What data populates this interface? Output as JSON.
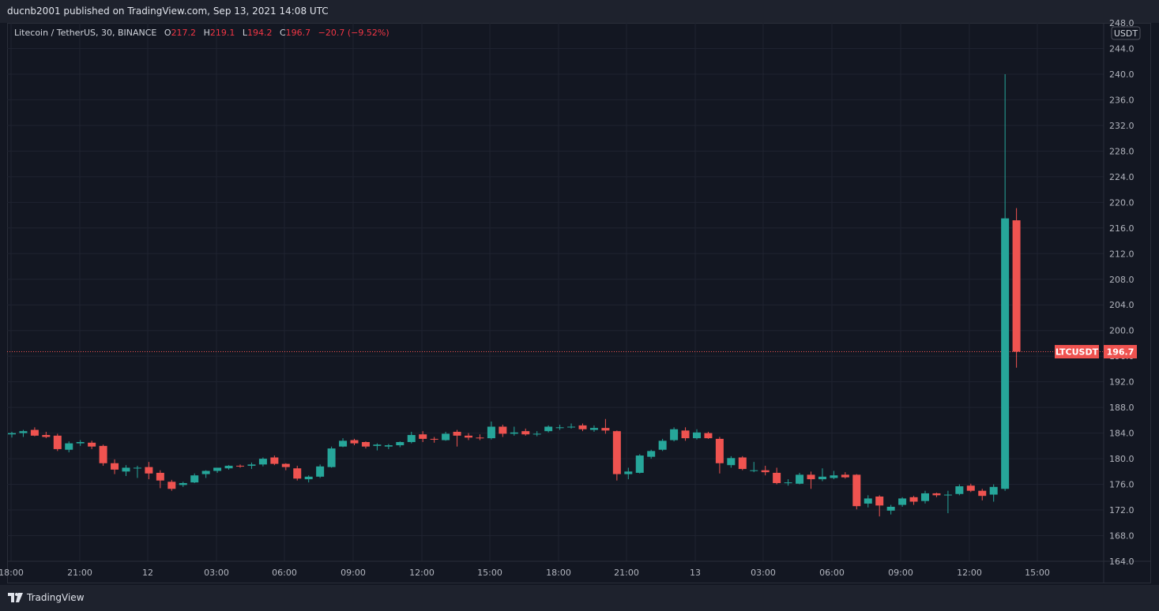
{
  "header": {
    "publish_text": "ducnb2001 published on TradingView.com, Sep 13, 2021 14:08 UTC"
  },
  "legend": {
    "symbol": "Litecoin / TetherUS, 30, BINANCE",
    "o_label": "O",
    "o_value": "217.2",
    "h_label": "H",
    "h_value": "219.1",
    "l_label": "L",
    "l_value": "194.2",
    "c_label": "C",
    "c_value": "196.7",
    "change": "−20.7 (−9.52%)"
  },
  "price_scale": {
    "currency": "USDT",
    "last_label": "LTCUSDT",
    "last_value": "196.7"
  },
  "footer": {
    "brand": "TradingView"
  },
  "colors": {
    "up": "#26a69a",
    "down": "#ef5350",
    "background": "#131722",
    "grid": "#1f2330",
    "text": "#d1d4dc"
  },
  "chart_data": {
    "type": "candlestick",
    "symbol": "LTCUSDT",
    "interval": "30",
    "ylim": [
      164,
      248
    ],
    "yticks": [
      "248.0",
      "244.0",
      "240.0",
      "236.0",
      "232.0",
      "228.0",
      "224.0",
      "220.0",
      "216.0",
      "212.0",
      "208.0",
      "204.0",
      "200.0",
      "196.0",
      "192.0",
      "188.0",
      "184.0",
      "180.0",
      "176.0",
      "172.0",
      "168.0",
      "164.0"
    ],
    "xticks": [
      "18:00",
      "21:00",
      "12",
      "03:00",
      "06:00",
      "09:00",
      "12:00",
      "15:00",
      "18:00",
      "21:00",
      "13",
      "03:00",
      "06:00",
      "09:00",
      "12:00",
      "15:00"
    ],
    "last_price": 196.7,
    "candles": [
      [
        183.8,
        184.2,
        183.3,
        184.0
      ],
      [
        184.0,
        184.5,
        183.4,
        184.3
      ],
      [
        184.5,
        184.9,
        183.5,
        183.6
      ],
      [
        183.7,
        184.2,
        183.2,
        183.4
      ],
      [
        183.6,
        183.9,
        181.2,
        181.5
      ],
      [
        181.4,
        182.7,
        181.0,
        182.4
      ],
      [
        182.4,
        182.9,
        182.0,
        182.6
      ],
      [
        182.5,
        182.8,
        181.5,
        181.9
      ],
      [
        182.0,
        182.2,
        178.9,
        179.3
      ],
      [
        179.3,
        179.9,
        177.6,
        178.3
      ],
      [
        178.0,
        179.0,
        177.3,
        178.6
      ],
      [
        178.6,
        178.9,
        177.0,
        178.6
      ],
      [
        178.7,
        179.5,
        176.8,
        177.7
      ],
      [
        177.8,
        178.2,
        175.4,
        176.6
      ],
      [
        176.4,
        176.7,
        175.0,
        175.3
      ],
      [
        175.9,
        176.4,
        175.6,
        176.2
      ],
      [
        176.3,
        177.7,
        176.2,
        177.4
      ],
      [
        177.6,
        178.2,
        177.0,
        178.1
      ],
      [
        178.1,
        178.6,
        177.8,
        178.6
      ],
      [
        178.5,
        179.0,
        178.3,
        178.9
      ],
      [
        178.9,
        179.1,
        178.6,
        178.8
      ],
      [
        178.9,
        179.4,
        178.4,
        179.1
      ],
      [
        179.1,
        180.2,
        178.8,
        180.0
      ],
      [
        180.2,
        180.5,
        179.0,
        179.2
      ],
      [
        179.2,
        179.3,
        178.2,
        178.7
      ],
      [
        178.5,
        178.9,
        176.6,
        176.9
      ],
      [
        176.8,
        177.4,
        176.3,
        177.2
      ],
      [
        177.2,
        179.1,
        177.0,
        178.8
      ],
      [
        178.7,
        181.9,
        178.6,
        181.6
      ],
      [
        181.9,
        183.2,
        181.8,
        182.8
      ],
      [
        182.9,
        183.1,
        182.1,
        182.4
      ],
      [
        182.6,
        182.7,
        181.6,
        181.9
      ],
      [
        182.0,
        182.4,
        181.3,
        182.2
      ],
      [
        181.9,
        182.3,
        181.5,
        182.1
      ],
      [
        182.1,
        182.7,
        181.8,
        182.6
      ],
      [
        182.6,
        184.2,
        182.4,
        183.7
      ],
      [
        183.8,
        184.3,
        182.6,
        183.1
      ],
      [
        183.1,
        183.4,
        182.5,
        183.0
      ],
      [
        182.9,
        184.2,
        182.8,
        183.9
      ],
      [
        184.2,
        184.5,
        181.9,
        183.6
      ],
      [
        183.6,
        184.0,
        182.9,
        183.3
      ],
      [
        183.3,
        183.8,
        182.9,
        183.2
      ],
      [
        183.2,
        185.8,
        183.0,
        185.0
      ],
      [
        185.0,
        185.3,
        183.4,
        183.9
      ],
      [
        183.9,
        185.0,
        183.6,
        184.1
      ],
      [
        184.3,
        184.7,
        183.6,
        183.8
      ],
      [
        183.8,
        184.3,
        183.5,
        183.9
      ],
      [
        184.3,
        185.2,
        184.1,
        185.0
      ],
      [
        184.9,
        185.3,
        184.5,
        184.9
      ],
      [
        184.9,
        185.5,
        184.7,
        185.0
      ],
      [
        185.2,
        185.5,
        184.3,
        184.6
      ],
      [
        184.5,
        185.2,
        184.2,
        184.8
      ],
      [
        184.8,
        186.2,
        183.9,
        184.4
      ],
      [
        184.3,
        184.4,
        176.6,
        177.6
      ],
      [
        177.6,
        178.6,
        176.8,
        178.0
      ],
      [
        177.8,
        180.7,
        177.7,
        180.5
      ],
      [
        180.3,
        181.4,
        180.0,
        181.2
      ],
      [
        181.4,
        183.1,
        181.2,
        182.8
      ],
      [
        182.9,
        184.9,
        182.7,
        184.6
      ],
      [
        184.4,
        184.9,
        182.8,
        183.2
      ],
      [
        183.2,
        184.6,
        183.0,
        184.1
      ],
      [
        184.0,
        184.2,
        183.1,
        183.2
      ],
      [
        183.1,
        183.4,
        177.7,
        179.3
      ],
      [
        179.0,
        180.4,
        178.6,
        180.1
      ],
      [
        180.2,
        180.4,
        178.2,
        178.4
      ],
      [
        178.2,
        179.5,
        177.9,
        178.2
      ],
      [
        178.2,
        178.9,
        177.4,
        177.9
      ],
      [
        177.8,
        178.6,
        176.0,
        176.2
      ],
      [
        176.2,
        176.8,
        175.8,
        176.3
      ],
      [
        176.1,
        177.8,
        176.0,
        177.5
      ],
      [
        177.5,
        178.0,
        175.3,
        176.8
      ],
      [
        176.8,
        178.5,
        176.5,
        177.2
      ],
      [
        177.0,
        178.1,
        176.8,
        177.4
      ],
      [
        177.5,
        177.9,
        176.9,
        177.1
      ],
      [
        177.5,
        177.6,
        172.1,
        172.6
      ],
      [
        173.0,
        174.3,
        172.4,
        173.8
      ],
      [
        174.1,
        174.3,
        171.0,
        172.7
      ],
      [
        171.9,
        172.8,
        171.3,
        172.5
      ],
      [
        172.8,
        174.0,
        172.5,
        173.8
      ],
      [
        174.0,
        174.2,
        172.8,
        173.3
      ],
      [
        173.4,
        175.0,
        173.0,
        174.6
      ],
      [
        174.6,
        174.7,
        174.0,
        174.3
      ],
      [
        174.4,
        175.0,
        171.5,
        174.4
      ],
      [
        174.5,
        176.0,
        174.3,
        175.7
      ],
      [
        175.8,
        176.1,
        174.8,
        175.0
      ],
      [
        175.0,
        175.3,
        173.5,
        174.2
      ],
      [
        174.4,
        176.0,
        173.3,
        175.6
      ],
      [
        175.3,
        240.0,
        175.0,
        217.5
      ],
      [
        217.2,
        219.1,
        194.2,
        196.7
      ]
    ]
  }
}
